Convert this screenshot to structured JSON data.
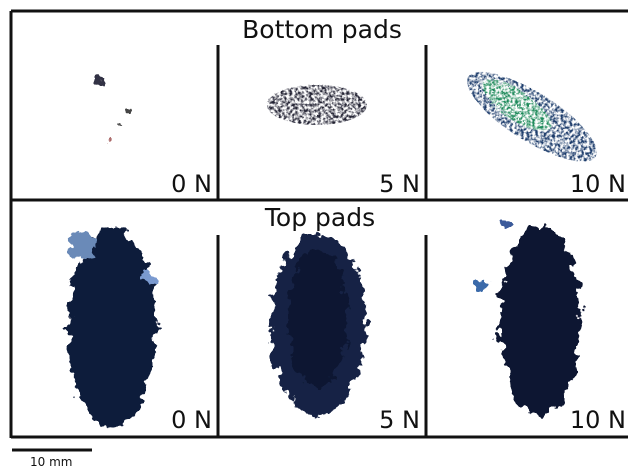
{
  "panels": [
    {
      "title": "Bottom pads",
      "cells": [
        {
          "label": "0 N"
        },
        {
          "label": "5 N"
        },
        {
          "label": "10 N"
        }
      ]
    },
    {
      "title": "Top pads",
      "cells": [
        {
          "label": "0 N"
        },
        {
          "label": "5 N"
        },
        {
          "label": "10 N"
        }
      ]
    }
  ],
  "scale_bar": {
    "label": "10 mm"
  }
}
